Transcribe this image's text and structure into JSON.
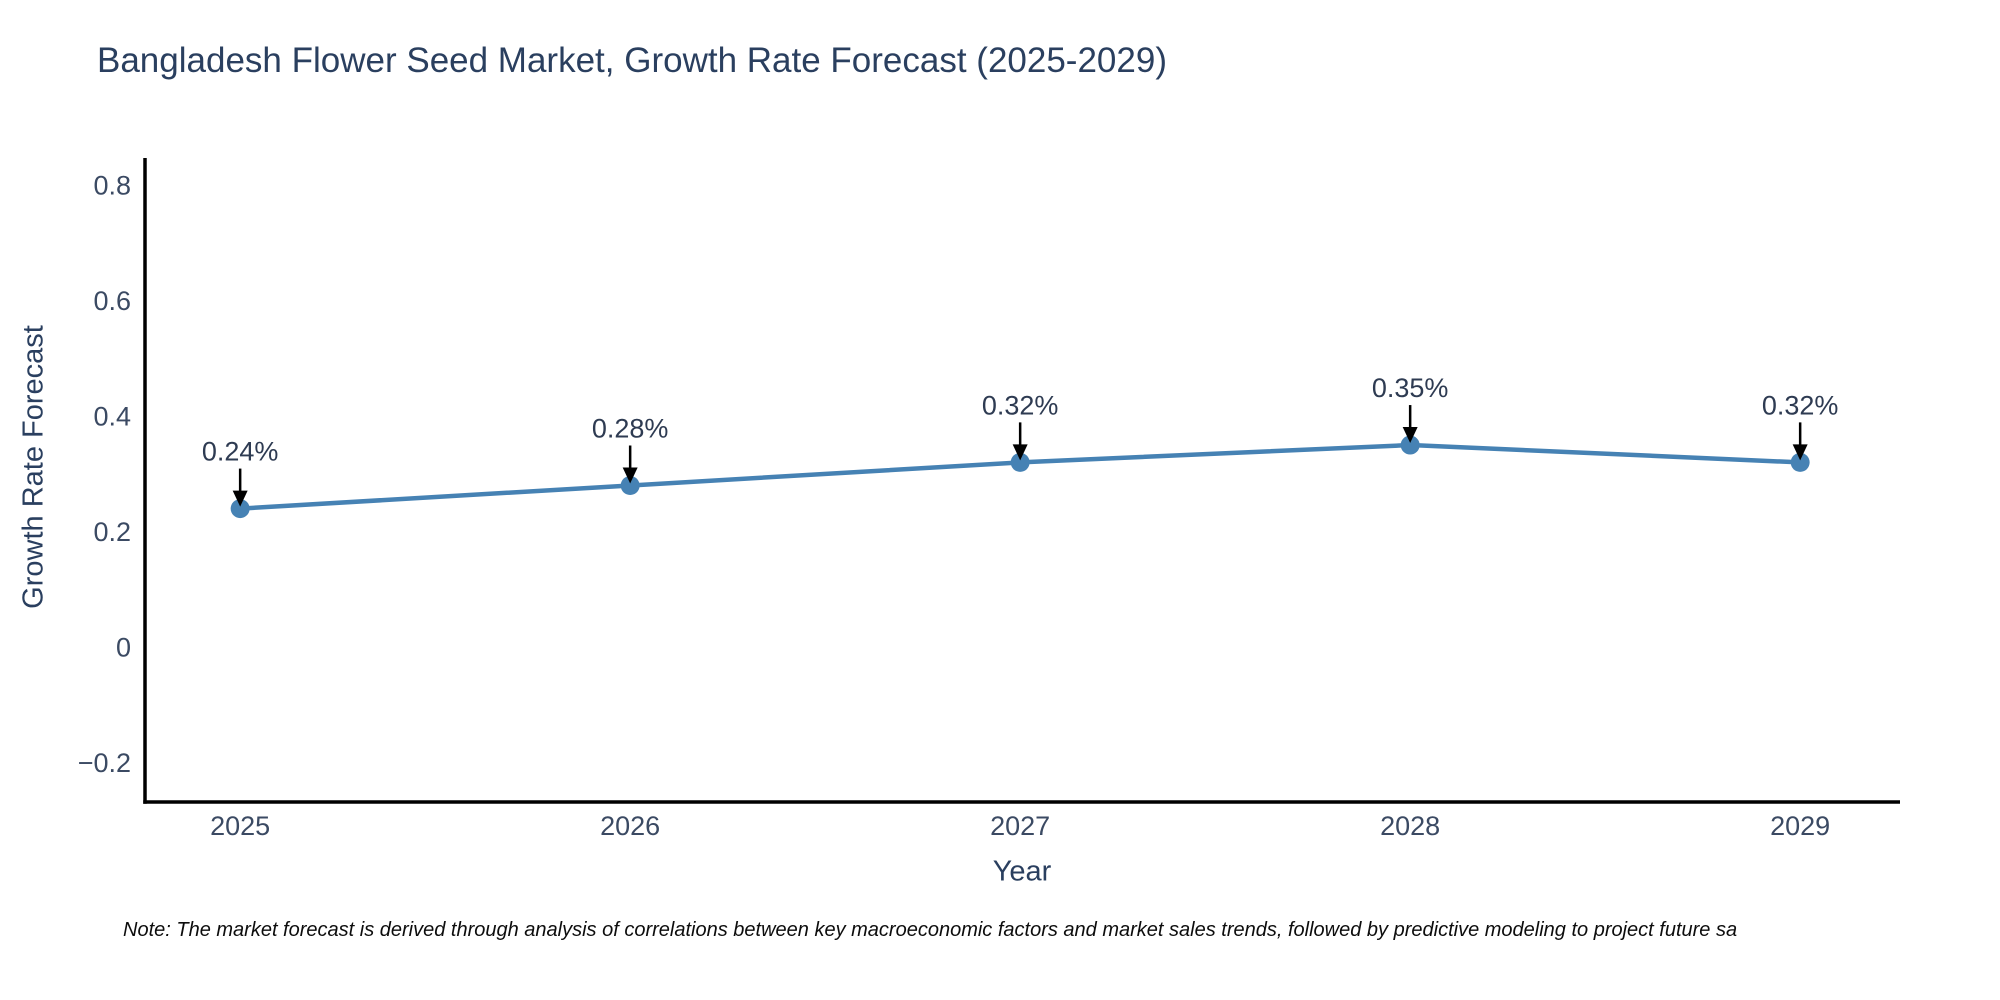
{
  "page": {
    "background": "#ffffff"
  },
  "chart_data": {
    "type": "line",
    "title": "Bangladesh Flower Seed Market, Growth Rate Forecast (2025-2029)",
    "xlabel": "Year",
    "ylabel": "Growth Rate Forecast",
    "x": [
      2025,
      2026,
      2027,
      2028,
      2029
    ],
    "series": [
      {
        "name": "Growth Rate Forecast",
        "values": [
          0.24,
          0.28,
          0.32,
          0.35,
          0.32
        ],
        "point_labels": [
          "0.24%",
          "0.28%",
          "0.32%",
          "0.35%",
          "0.32%"
        ],
        "color": "#4682b4"
      }
    ],
    "xticks": {
      "values": [
        2025,
        2026,
        2027,
        2028,
        2029
      ],
      "labels": [
        "2025",
        "2026",
        "2027",
        "2028",
        "2029"
      ]
    },
    "yticks": {
      "values": [
        -0.2,
        0,
        0.2,
        0.4,
        0.6,
        0.8
      ],
      "labels": [
        "−0.2",
        "0",
        "0.2",
        "0.4",
        "0.6",
        "0.8"
      ]
    },
    "xlim": [
      2024.756,
      2029.256
    ],
    "ylim": [
      -0.268,
      0.847
    ],
    "grid": false,
    "legend": false,
    "annotations_have_arrows": true
  },
  "footnote": {
    "text": "Note: The market forecast is derived through analysis of correlations between key macroeconomic factors and market sales trends, followed by predictive modeling to project future sa"
  },
  "colors": {
    "title_text": "#2a3f5f",
    "axis_label_text": "#2a3f5f",
    "tick_text": "#3b4a63",
    "annotation_text": "#2e3b52",
    "spine": "#000000",
    "arrow": "#000000",
    "line": "#4682b4",
    "marker": "#4682b4",
    "note_text": "#0d0d0d"
  }
}
